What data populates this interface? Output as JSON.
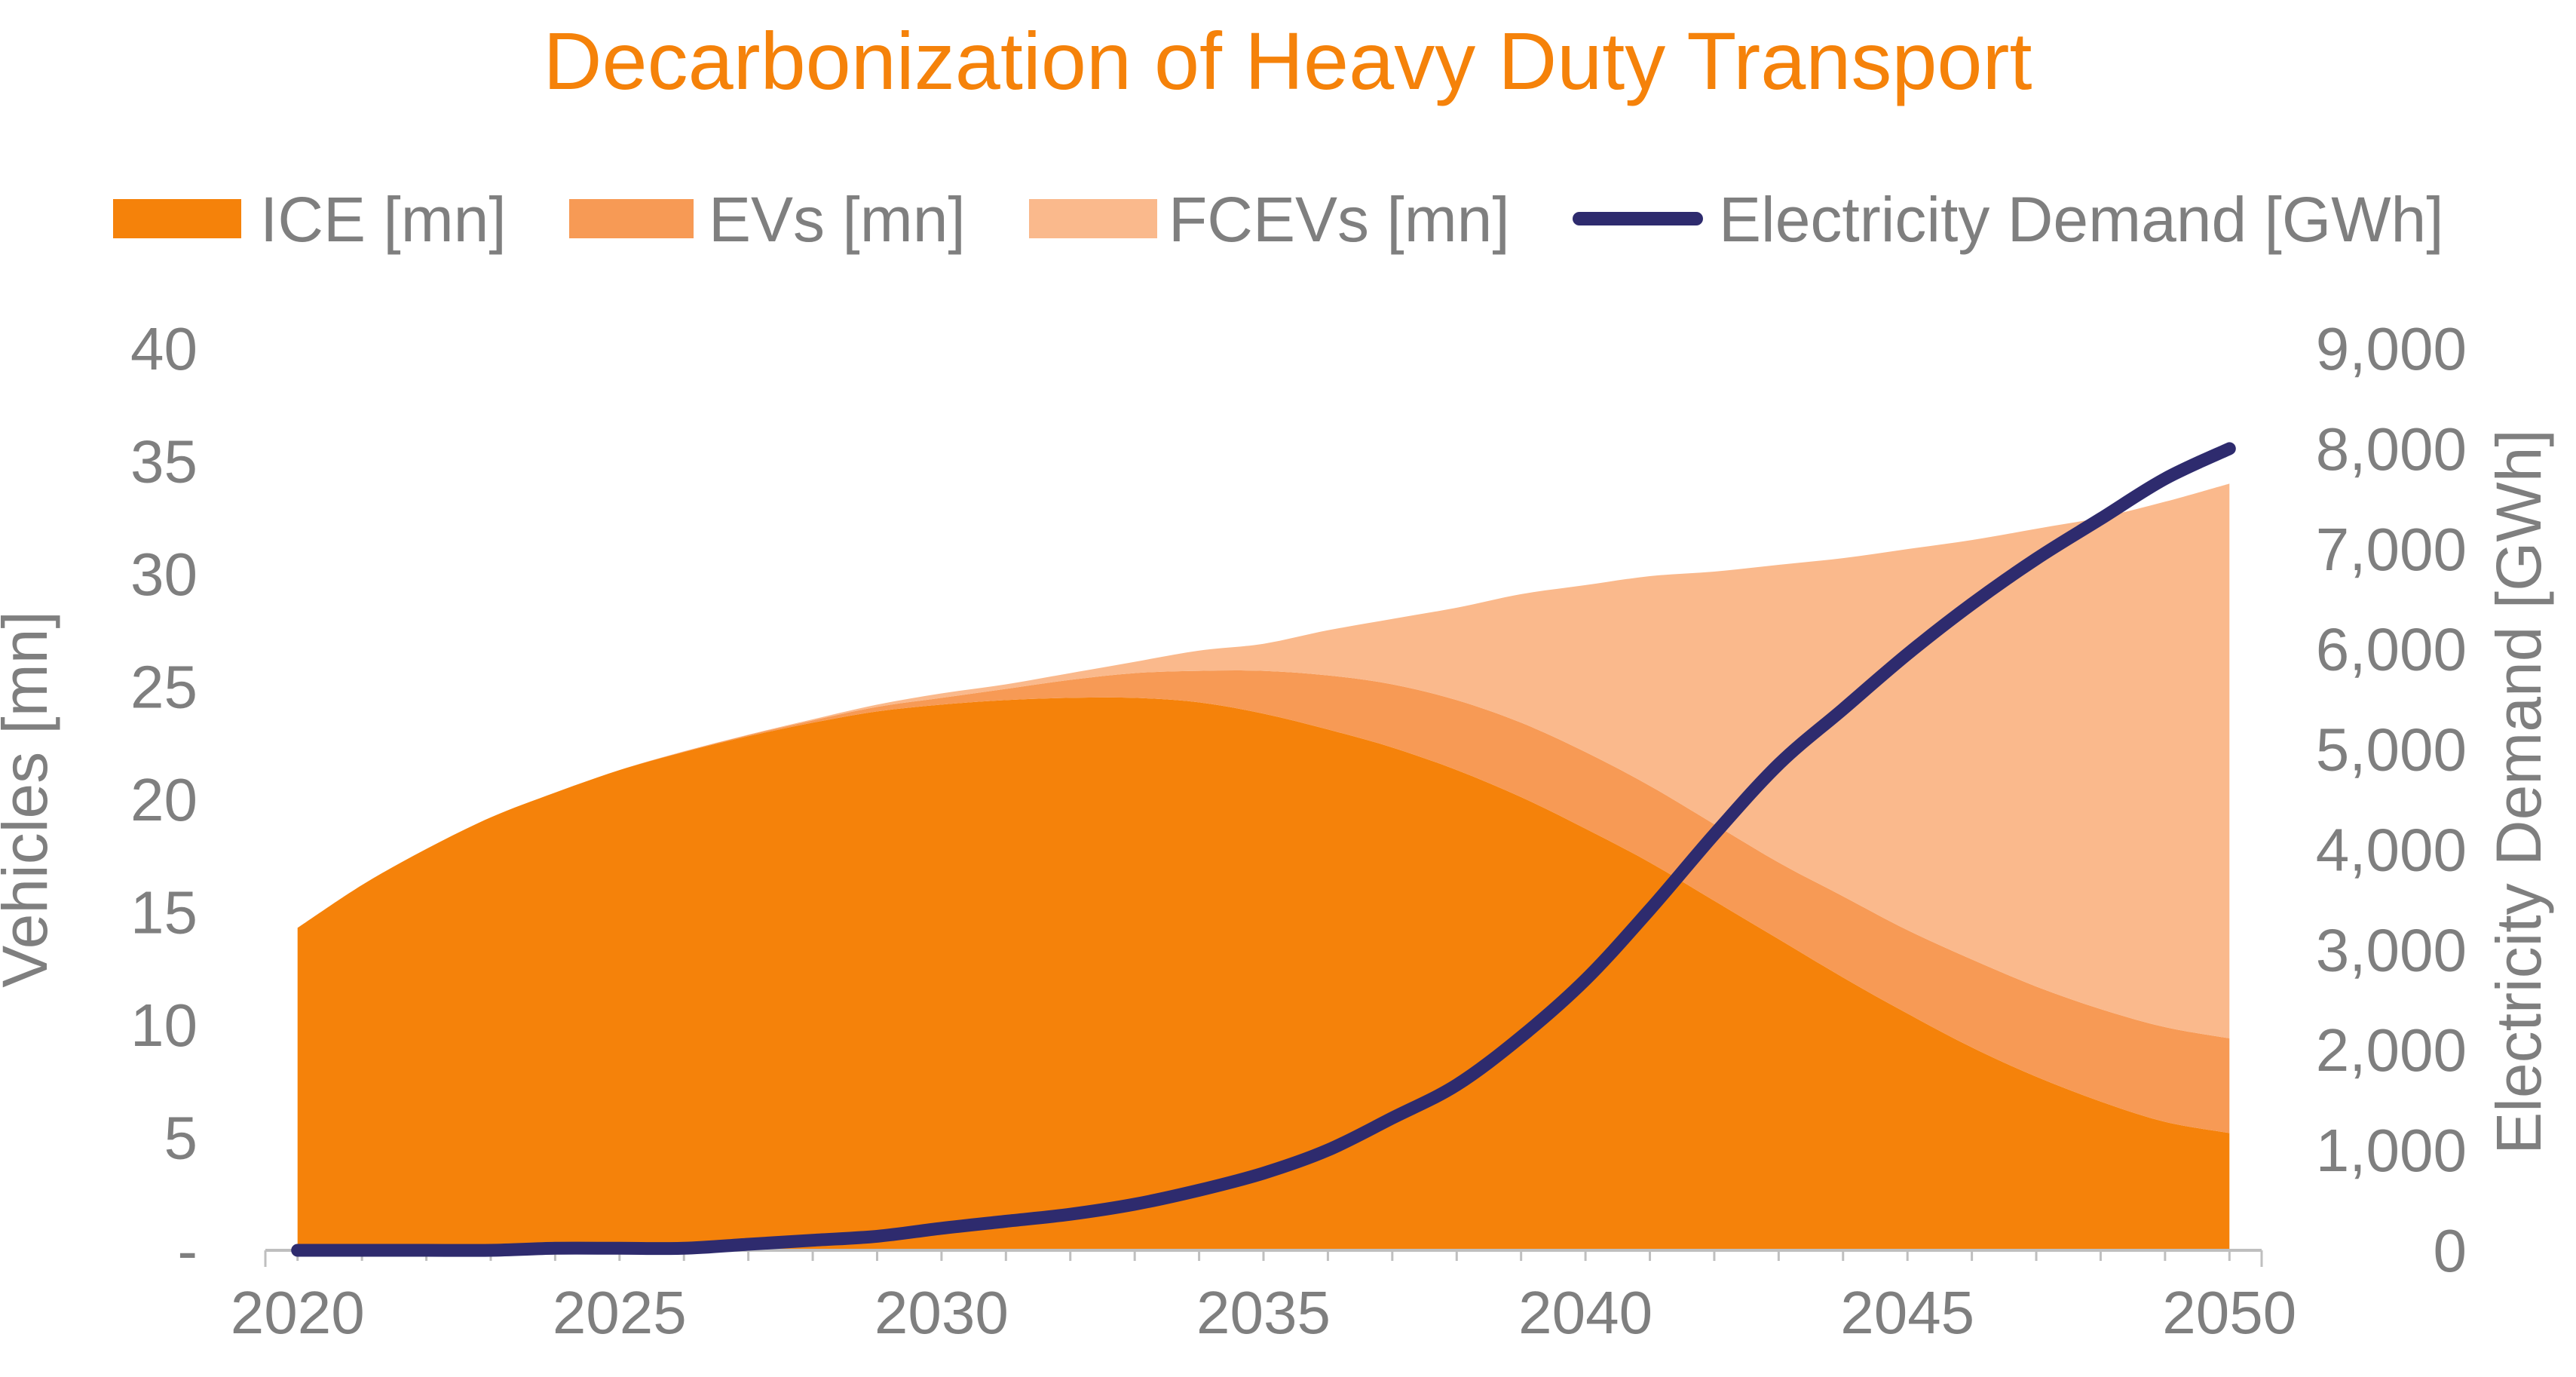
{
  "chart_data": {
    "type": "area",
    "title": "Decarbonization of Heavy Duty Transport",
    "xlabel": "",
    "ylabel": "Vehicles [mn]",
    "y2label": "Electricity Demand [GWh]",
    "x": [
      2020,
      2021,
      2022,
      2023,
      2024,
      2025,
      2026,
      2027,
      2028,
      2029,
      2030,
      2031,
      2032,
      2033,
      2034,
      2035,
      2036,
      2037,
      2038,
      2039,
      2040,
      2041,
      2042,
      2043,
      2044,
      2045,
      2046,
      2047,
      2048,
      2049,
      2050
    ],
    "xlim": [
      2019.5,
      2050.5
    ],
    "x_tick_labels": [
      "2020",
      "2025",
      "2030",
      "2035",
      "2040",
      "2045",
      "2050"
    ],
    "x_tick_values": [
      2020,
      2025,
      2030,
      2035,
      2040,
      2045,
      2050
    ],
    "ylim": [
      0,
      40
    ],
    "y_tick_labels": [
      "-",
      "5",
      "10",
      "15",
      "20",
      "25",
      "30",
      "35",
      "40"
    ],
    "y_tick_values": [
      0,
      5,
      10,
      15,
      20,
      25,
      30,
      35,
      40
    ],
    "y2lim": [
      0,
      9000
    ],
    "y2_tick_labels": [
      "0",
      "1,000",
      "2,000",
      "3,000",
      "4,000",
      "5,000",
      "6,000",
      "7,000",
      "8,000",
      "9,000"
    ],
    "y2_tick_values": [
      0,
      1000,
      2000,
      3000,
      4000,
      5000,
      6000,
      7000,
      8000,
      9000
    ],
    "legend_position": "top",
    "series": [
      {
        "name": "ICE [mn]",
        "kind": "area",
        "axis": "left",
        "color": "#f5820a",
        "values": [
          14.3,
          16.2,
          17.8,
          19.2,
          20.3,
          21.3,
          22.1,
          22.8,
          23.4,
          23.9,
          24.2,
          24.4,
          24.5,
          24.5,
          24.3,
          23.8,
          23.1,
          22.3,
          21.3,
          20.1,
          18.7,
          17.2,
          15.5,
          13.8,
          12.1,
          10.5,
          9.0,
          7.7,
          6.6,
          5.7,
          5.2
        ]
      },
      {
        "name": "EVs [mn]",
        "kind": "area",
        "axis": "left",
        "color": "#f79a55",
        "values": [
          0,
          0,
          0,
          0,
          0,
          0,
          0.02,
          0.05,
          0.1,
          0.2,
          0.3,
          0.5,
          0.8,
          1.1,
          1.4,
          1.9,
          2.4,
          2.8,
          3.1,
          3.3,
          3.4,
          3.4,
          3.4,
          3.4,
          3.6,
          3.7,
          3.9,
          4.0,
          4.1,
          4.2,
          4.2
        ]
      },
      {
        "name": "FCEVs [mn]",
        "kind": "area",
        "axis": "left",
        "color": "#fab98c",
        "values": [
          0,
          0,
          0,
          0,
          0,
          0,
          0.01,
          0.02,
          0.05,
          0.1,
          0.2,
          0.2,
          0.3,
          0.5,
          0.9,
          1.2,
          2.0,
          2.9,
          4.1,
          5.7,
          7.4,
          9.3,
          11.2,
          13.2,
          15.0,
          16.9,
          18.6,
          20.3,
          21.8,
          23.3,
          24.6
        ]
      },
      {
        "name": "Electricity Demand [GWh]",
        "kind": "line",
        "axis": "right",
        "color": "#2e2b6e",
        "values": [
          0,
          0,
          0,
          0,
          20,
          20,
          20,
          60,
          100,
          140,
          220,
          290,
          360,
          460,
          600,
          770,
          1000,
          1320,
          1650,
          2130,
          2700,
          3400,
          4150,
          4850,
          5400,
          5950,
          6450,
          6900,
          7300,
          7700,
          8000
        ]
      }
    ]
  }
}
